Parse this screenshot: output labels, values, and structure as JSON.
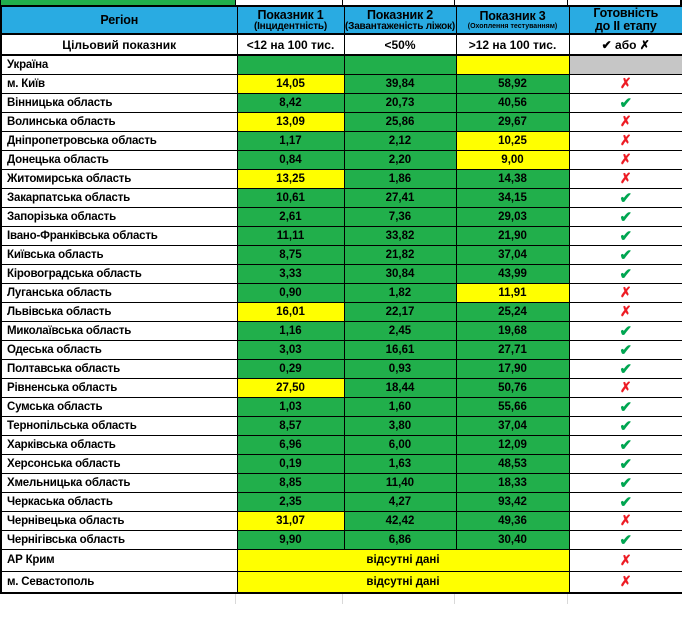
{
  "colors": {
    "header_bg": "#29ABE2",
    "green": "#21AF4B",
    "yellow": "#FFFF00",
    "gray": "#C6C6C6",
    "check_green": "#00A651",
    "cross_red": "#ED1C24"
  },
  "symbols": {
    "check": "✔",
    "cross": "✗"
  },
  "header": {
    "region": "Регіон",
    "col1_title": "Показник 1",
    "col1_sub": "(Інцидентність)",
    "col2_title": "Показник 2",
    "col2_sub": "(Завантаженість ліжок)",
    "col3_title": "Показник 3",
    "col3_sub": "(Охоплення тестуванням)",
    "readiness_line1": "Готовність",
    "readiness_line2": "до II етапу"
  },
  "target_row": {
    "label": "Цільовий показник",
    "col1": "<12 на 100 тис.",
    "col2": "<50%",
    "col3": ">12 на 100 тис.",
    "readiness": "✔ або ✗"
  },
  "rows": [
    {
      "name": "Україна",
      "p1": "",
      "p1_bg": "green",
      "p2": "",
      "p2_bg": "green",
      "p3": "",
      "p3_bg": "yellow",
      "ready": "none"
    },
    {
      "name": "м. Київ",
      "p1": "14,05",
      "p1_bg": "yellow",
      "p2": "39,84",
      "p2_bg": "green",
      "p3": "58,92",
      "p3_bg": "green",
      "ready": "no"
    },
    {
      "name": "Вінницька область",
      "p1": "8,42",
      "p1_bg": "green",
      "p2": "20,73",
      "p2_bg": "green",
      "p3": "40,56",
      "p3_bg": "green",
      "ready": "yes"
    },
    {
      "name": "Волинська область",
      "p1": "13,09",
      "p1_bg": "yellow",
      "p2": "25,86",
      "p2_bg": "green",
      "p3": "29,67",
      "p3_bg": "green",
      "ready": "no"
    },
    {
      "name": "Дніпропетровська область",
      "p1": "1,17",
      "p1_bg": "green",
      "p2": "2,12",
      "p2_bg": "green",
      "p3": "10,25",
      "p3_bg": "yellow",
      "ready": "no"
    },
    {
      "name": "Донецька область",
      "p1": "0,84",
      "p1_bg": "green",
      "p2": "2,20",
      "p2_bg": "green",
      "p3": "9,00",
      "p3_bg": "yellow",
      "ready": "no"
    },
    {
      "name": "Житомирська область",
      "p1": "13,25",
      "p1_bg": "yellow",
      "p2": "1,86",
      "p2_bg": "green",
      "p3": "14,38",
      "p3_bg": "green",
      "ready": "no"
    },
    {
      "name": "Закарпатська область",
      "p1": "10,61",
      "p1_bg": "green",
      "p2": "27,41",
      "p2_bg": "green",
      "p3": "34,15",
      "p3_bg": "green",
      "ready": "yes"
    },
    {
      "name": "Запорізька область",
      "p1": "2,61",
      "p1_bg": "green",
      "p2": "7,36",
      "p2_bg": "green",
      "p3": "29,03",
      "p3_bg": "green",
      "ready": "yes"
    },
    {
      "name": "Івано-Франківська область",
      "p1": "11,11",
      "p1_bg": "green",
      "p2": "33,82",
      "p2_bg": "green",
      "p3": "21,90",
      "p3_bg": "green",
      "ready": "yes"
    },
    {
      "name": "Київська область",
      "p1": "8,75",
      "p1_bg": "green",
      "p2": "21,82",
      "p2_bg": "green",
      "p3": "37,04",
      "p3_bg": "green",
      "ready": "yes"
    },
    {
      "name": "Кіровоградська область",
      "p1": "3,33",
      "p1_bg": "green",
      "p2": "30,84",
      "p2_bg": "green",
      "p3": "43,99",
      "p3_bg": "green",
      "ready": "yes"
    },
    {
      "name": "Луганська область",
      "p1": "0,90",
      "p1_bg": "green",
      "p2": "1,82",
      "p2_bg": "green",
      "p3": "11,91",
      "p3_bg": "yellow",
      "ready": "no"
    },
    {
      "name": "Львівська область",
      "p1": "16,01",
      "p1_bg": "yellow",
      "p2": "22,17",
      "p2_bg": "green",
      "p3": "25,24",
      "p3_bg": "green",
      "ready": "no"
    },
    {
      "name": "Миколаївська область",
      "p1": "1,16",
      "p1_bg": "green",
      "p2": "2,45",
      "p2_bg": "green",
      "p3": "19,68",
      "p3_bg": "green",
      "ready": "yes"
    },
    {
      "name": "Одеська область",
      "p1": "3,03",
      "p1_bg": "green",
      "p2": "16,61",
      "p2_bg": "green",
      "p3": "27,71",
      "p3_bg": "green",
      "ready": "yes"
    },
    {
      "name": "Полтавська область",
      "p1": "0,29",
      "p1_bg": "green",
      "p2": "0,93",
      "p2_bg": "green",
      "p3": "17,90",
      "p3_bg": "green",
      "ready": "yes"
    },
    {
      "name": "Рівненська область",
      "p1": "27,50",
      "p1_bg": "yellow",
      "p2": "18,44",
      "p2_bg": "green",
      "p3": "50,76",
      "p3_bg": "green",
      "ready": "no"
    },
    {
      "name": "Сумська область",
      "p1": "1,03",
      "p1_bg": "green",
      "p2": "1,60",
      "p2_bg": "green",
      "p3": "55,66",
      "p3_bg": "green",
      "ready": "yes"
    },
    {
      "name": "Тернопільська область",
      "p1": "8,57",
      "p1_bg": "green",
      "p2": "3,80",
      "p2_bg": "green",
      "p3": "37,04",
      "p3_bg": "green",
      "ready": "yes"
    },
    {
      "name": "Харківська область",
      "p1": "6,96",
      "p1_bg": "green",
      "p2": "6,00",
      "p2_bg": "green",
      "p3": "12,09",
      "p3_bg": "green",
      "ready": "yes"
    },
    {
      "name": "Херсонська область",
      "p1": "0,19",
      "p1_bg": "green",
      "p2": "1,63",
      "p2_bg": "green",
      "p3": "48,53",
      "p3_bg": "green",
      "ready": "yes"
    },
    {
      "name": "Хмельницька область",
      "p1": "8,85",
      "p1_bg": "green",
      "p2": "11,40",
      "p2_bg": "green",
      "p3": "18,33",
      "p3_bg": "green",
      "ready": "yes"
    },
    {
      "name": "Черкаська область",
      "p1": "2,35",
      "p1_bg": "green",
      "p2": "4,27",
      "p2_bg": "green",
      "p3": "93,42",
      "p3_bg": "green",
      "ready": "yes"
    },
    {
      "name": "Чернівецька область",
      "p1": "31,07",
      "p1_bg": "yellow",
      "p2": "42,42",
      "p2_bg": "green",
      "p3": "49,36",
      "p3_bg": "green",
      "ready": "no"
    },
    {
      "name": "Чернігівська область",
      "p1": "9,90",
      "p1_bg": "green",
      "p2": "6,86",
      "p2_bg": "green",
      "p3": "30,40",
      "p3_bg": "green",
      "ready": "yes"
    },
    {
      "name": "АР Крим",
      "merged": true,
      "note": "відсутні дані",
      "note_bg": "yellow",
      "ready": "no"
    },
    {
      "name": "м. Севастополь",
      "merged": true,
      "note": "відсутні дані",
      "note_bg": "yellow",
      "ready": "no"
    }
  ]
}
